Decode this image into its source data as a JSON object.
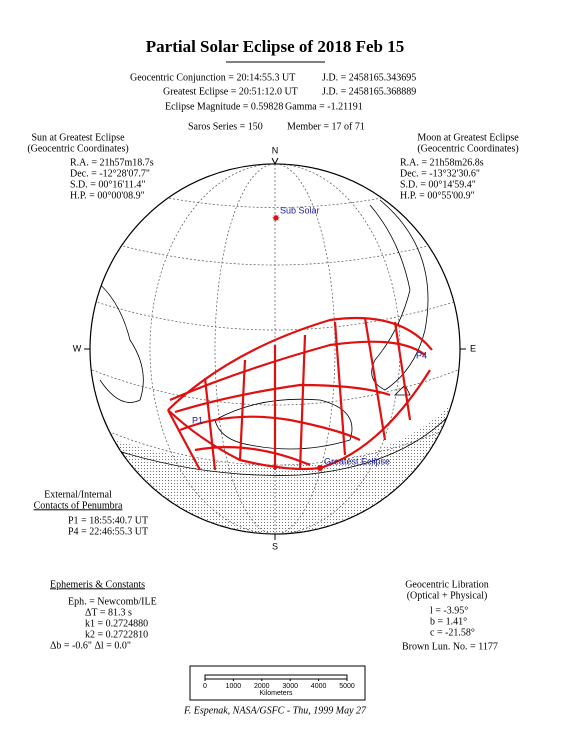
{
  "title": "Partial Solar Eclipse of 2018 Feb 15",
  "header": {
    "conjunction": "Geocentric Conjunction =  20:14:55.3 UT",
    "conjunction_jd": "J.D. =  2458165.343695",
    "greatest": "Greatest Eclipse =  20:51:12.0 UT",
    "greatest_jd": "J.D. =  2458165.368889",
    "magnitude": "Eclipse Magnitude =  0.59828",
    "gamma": "Gamma =  -1.21191",
    "saros": "Saros Series = 150",
    "member": "Member = 17 of 71"
  },
  "sun": {
    "heading": "Sun at Greatest Eclipse",
    "subheading": "(Geocentric Coordinates)",
    "lines": [
      "R.A. =  21h57m18.7s",
      "Dec. =  -12°28'07.7\"",
      "S.D. =  00°16'11.4\"",
      "H.P. =  00°00'08.9\""
    ]
  },
  "moon": {
    "heading": "Moon at Greatest Eclipse",
    "subheading": "(Geocentric Coordinates)",
    "lines": [
      "R.A. =  21h58m26.8s",
      "Dec. =  -13°32'30.6\"",
      "S.D. =  00°14'59.4\"",
      "H.P. =  00°55'00.9\""
    ]
  },
  "map": {
    "north": "N",
    "south": "S",
    "east": "E",
    "west": "W",
    "sub_solar": "Sub Solar",
    "p1": "P1",
    "p4": "P4",
    "greatest_eclipse": "Greatest Eclipse"
  },
  "contacts": {
    "heading": "External/Internal",
    "subheading": "Contacts of Penumbra",
    "lines": [
      "P1 =  18:55:40.7 UT",
      "P4 =  22:46:55.3 UT"
    ]
  },
  "ephemeris": {
    "heading": "Ephemeris & Constants",
    "lines": [
      "Eph. = Newcomb/ILE",
      "ΔT =     81.3 s",
      "k1 = 0.2724880",
      "k2 = 0.2722810",
      "Δb =  -0.6\"     Δl =   0.0\""
    ]
  },
  "libration": {
    "heading": "Geocentric Libration",
    "subheading": "(Optical + Physical)",
    "lines": [
      "l =   -3.95°",
      "b =    1.41°",
      "c = -21.58°"
    ],
    "brown": "Brown Lun. No. = 1177"
  },
  "scale": {
    "ticks": [
      "0",
      "1000",
      "2000",
      "3000",
      "4000",
      "5000"
    ],
    "unit": "Kilometers"
  },
  "footer": "F. Espenak, NASA/GSFC - Thu, 1999 May 27"
}
